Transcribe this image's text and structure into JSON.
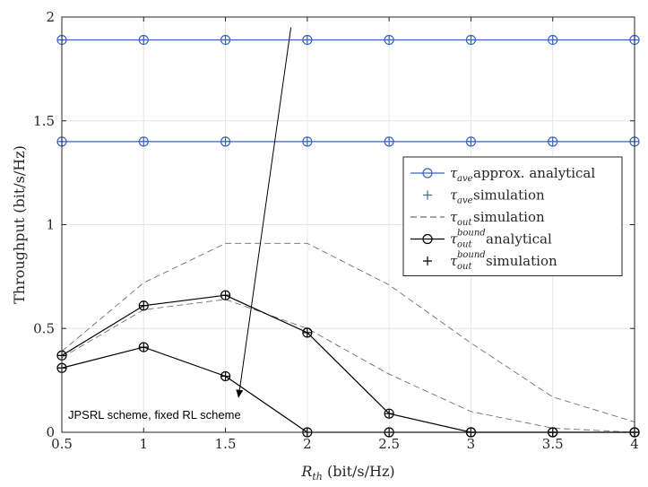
{
  "chart_data": {
    "type": "line",
    "x": [
      0.5,
      1,
      1.5,
      2,
      2.5,
      3,
      3.5,
      4
    ],
    "xlim": [
      0.5,
      4
    ],
    "ylim": [
      0,
      2
    ],
    "xticks": [
      "0.5",
      "1",
      "1.5",
      "2",
      "2.5",
      "3",
      "3.5",
      "4"
    ],
    "yticks": [
      "0",
      "0.5",
      "1",
      "1.5",
      "2"
    ],
    "xlabel": {
      "main": "R",
      "sub": "th",
      "rest": " (bit/s/Hz)"
    },
    "ylabel": "Throughput (bit/s/Hz)",
    "grid": true,
    "legend_position": "right",
    "colors": {
      "blue": "#3b63b8",
      "black": "#000000",
      "gray": "#6e6e6e"
    },
    "series": [
      {
        "name": "τave approx. analytical (upper)",
        "color": "blue",
        "style": "solid",
        "marker": "circle",
        "values": [
          1.89,
          1.89,
          1.89,
          1.89,
          1.89,
          1.89,
          1.89,
          1.89
        ]
      },
      {
        "name": "τave simulation (upper)",
        "color": "blue",
        "style": "none",
        "marker": "plus",
        "values": [
          1.89,
          1.89,
          1.89,
          1.89,
          1.89,
          1.89,
          1.89,
          1.89
        ]
      },
      {
        "name": "τave approx. analytical (lower)",
        "color": "blue",
        "style": "solid",
        "marker": "circle",
        "values": [
          1.4,
          1.4,
          1.4,
          1.4,
          1.4,
          1.4,
          1.4,
          1.4
        ]
      },
      {
        "name": "τave simulation (lower)",
        "color": "blue",
        "style": "none",
        "marker": "plus",
        "values": [
          1.4,
          1.4,
          1.4,
          1.4,
          1.4,
          1.4,
          1.4,
          1.4
        ]
      },
      {
        "name": "τout simulation (upper)",
        "color": "gray",
        "style": "dashed",
        "marker": "none",
        "values": [
          0.39,
          0.72,
          0.91,
          0.91,
          0.71,
          0.43,
          0.17,
          0.05
        ]
      },
      {
        "name": "τout simulation (lower)",
        "color": "gray",
        "style": "dashed",
        "marker": "none",
        "values": [
          0.36,
          0.59,
          0.64,
          0.5,
          0.28,
          0.1,
          0.02,
          0.0
        ]
      },
      {
        "name": "τout bound analytical (upper)",
        "color": "black",
        "style": "solid",
        "marker": "circle",
        "values": [
          0.37,
          0.61,
          0.66,
          0.48,
          0.09,
          0.0,
          0.0,
          0.0
        ]
      },
      {
        "name": "τout bound simulation (upper)",
        "color": "black",
        "style": "none",
        "marker": "plus",
        "values": [
          0.37,
          0.61,
          0.66,
          0.48,
          0.09,
          0.0,
          0.0,
          0.0
        ]
      },
      {
        "name": "τout bound analytical (lower)",
        "color": "black",
        "style": "solid",
        "marker": "circle",
        "values": [
          0.31,
          0.41,
          0.27,
          0.0,
          0.0,
          0.0,
          0.0,
          0.0
        ]
      },
      {
        "name": "τout bound simulation (lower)",
        "color": "black",
        "style": "none",
        "marker": "plus",
        "values": [
          0.31,
          0.41,
          0.27,
          0.0,
          0.0,
          0.0,
          0.0,
          0.0
        ]
      }
    ],
    "legend": [
      {
        "color": "blue",
        "line": "solid",
        "marker": "circle",
        "sym": "τ",
        "sub": "ave",
        "sup": "",
        "text": " approx. analytical"
      },
      {
        "color": "blue",
        "line": "none",
        "marker": "plus",
        "sym": "τ",
        "sub": "ave",
        "sup": "",
        "text": " simulation"
      },
      {
        "color": "gray",
        "line": "dashed",
        "marker": "none",
        "sym": "τ",
        "sub": "out",
        "sup": "",
        "text": " simulation"
      },
      {
        "color": "black",
        "line": "solid",
        "marker": "circle",
        "sym": "τ",
        "sub": "out",
        "sup": "bound",
        "text": " analytical"
      },
      {
        "color": "black",
        "line": "none",
        "marker": "plus",
        "sym": "τ",
        "sub": "out",
        "sup": "bound",
        "text": " simulation"
      }
    ],
    "annotation": {
      "text": "JPSRL scheme, fixed RL scheme",
      "arrow_from": [
        1.9,
        1.95
      ],
      "arrow_to": [
        1.58,
        0.17
      ]
    }
  }
}
